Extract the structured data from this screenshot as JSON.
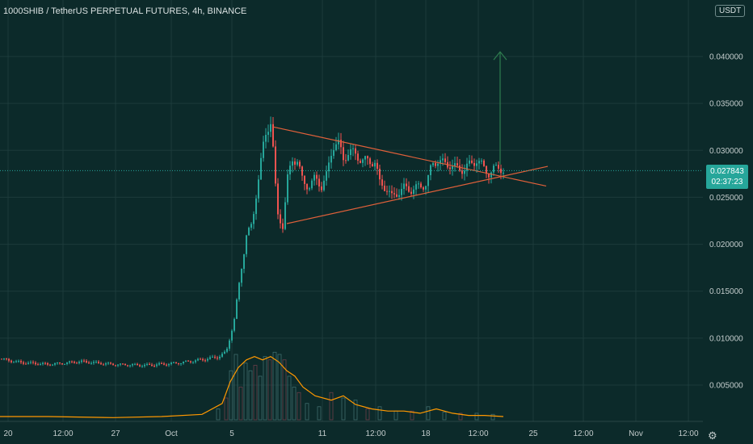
{
  "header": {
    "title": "1000SHIB / TetherUS PERPETUAL FUTURES, 4h, BINANCE",
    "currency": "USDT"
  },
  "price_tag": {
    "price": "0.027843",
    "countdown": "02:37:23"
  },
  "colors": {
    "background": "#0c2a2a",
    "grid": "#1c3b3b",
    "up": "#26a69a",
    "down": "#ef5350",
    "trendline": "#e0603a",
    "arrow": "#2e7d4f",
    "volume_ma": "#ff9800",
    "price_line": "#26a69a"
  },
  "icons": {
    "settings": "gear-icon"
  },
  "chart_data": {
    "type": "candlestick",
    "title": "1000SHIB / TetherUS PERPETUAL FUTURES, 4h, BINANCE",
    "y_axis": {
      "ticks": [
        "0.040000",
        "0.035000",
        "0.030000",
        "0.025000",
        "0.020000",
        "0.015000",
        "0.010000",
        "0.005000"
      ],
      "ylim": [
        0.0,
        0.045
      ]
    },
    "x_axis": {
      "ticks": [
        "20",
        "12:00",
        "27",
        "Oct",
        "5",
        "11",
        "12:00",
        "18",
        "12:00",
        "25",
        "12:00",
        "Nov",
        "12:00"
      ]
    },
    "last_price": 0.027843,
    "price_path": [
      [
        0,
        0.0078
      ],
      [
        25,
        0.0074
      ],
      [
        60,
        0.0072
      ],
      [
        100,
        0.0075
      ],
      [
        140,
        0.0072
      ],
      [
        180,
        0.0071
      ],
      [
        215,
        0.0073
      ],
      [
        250,
        0.0077
      ],
      [
        270,
        0.008
      ],
      [
        280,
        0.0085
      ],
      [
        290,
        0.012
      ],
      [
        298,
        0.017
      ],
      [
        305,
        0.021
      ],
      [
        312,
        0.022
      ],
      [
        318,
        0.026
      ],
      [
        325,
        0.03
      ],
      [
        330,
        0.032
      ],
      [
        336,
        0.0335
      ],
      [
        340,
        0.027
      ],
      [
        344,
        0.023
      ],
      [
        350,
        0.022
      ],
      [
        356,
        0.027
      ],
      [
        362,
        0.029
      ],
      [
        368,
        0.029
      ],
      [
        375,
        0.0265
      ],
      [
        382,
        0.0262
      ],
      [
        390,
        0.027
      ],
      [
        398,
        0.0262
      ],
      [
        405,
        0.0275
      ],
      [
        412,
        0.0305
      ],
      [
        418,
        0.031
      ],
      [
        425,
        0.029
      ],
      [
        432,
        0.03
      ],
      [
        440,
        0.0295
      ],
      [
        448,
        0.029
      ],
      [
        456,
        0.0288
      ],
      [
        464,
        0.0288
      ],
      [
        470,
        0.0265
      ],
      [
        478,
        0.026
      ],
      [
        485,
        0.025
      ],
      [
        492,
        0.0255
      ],
      [
        500,
        0.026
      ],
      [
        508,
        0.0258
      ],
      [
        515,
        0.026
      ],
      [
        522,
        0.0262
      ],
      [
        528,
        0.0265
      ],
      [
        535,
        0.0285
      ],
      [
        542,
        0.029
      ],
      [
        550,
        0.0285
      ],
      [
        558,
        0.0285
      ],
      [
        566,
        0.028
      ],
      [
        574,
        0.028
      ],
      [
        582,
        0.0285
      ],
      [
        590,
        0.029
      ],
      [
        598,
        0.0282
      ],
      [
        606,
        0.0275
      ],
      [
        612,
        0.028
      ],
      [
        618,
        0.0283
      ],
      [
        623,
        0.0278
      ]
    ],
    "volume_ma": [
      [
        0,
        0.0003
      ],
      [
        60,
        0.0003
      ],
      [
        140,
        0.0002
      ],
      [
        200,
        0.0003
      ],
      [
        250,
        0.0005
      ],
      [
        275,
        0.0015
      ],
      [
        285,
        0.0035
      ],
      [
        295,
        0.0048
      ],
      [
        305,
        0.0055
      ],
      [
        315,
        0.0058
      ],
      [
        325,
        0.0055
      ],
      [
        335,
        0.0058
      ],
      [
        345,
        0.0053
      ],
      [
        355,
        0.0045
      ],
      [
        365,
        0.004
      ],
      [
        375,
        0.003
      ],
      [
        390,
        0.0022
      ],
      [
        410,
        0.0018
      ],
      [
        425,
        0.0022
      ],
      [
        440,
        0.0014
      ],
      [
        460,
        0.001
      ],
      [
        480,
        0.0008
      ],
      [
        500,
        0.0008
      ],
      [
        520,
        0.0006
      ],
      [
        540,
        0.001
      ],
      [
        560,
        0.0006
      ],
      [
        580,
        0.0004
      ],
      [
        600,
        0.0004
      ],
      [
        623,
        0.0003
      ]
    ],
    "volume_bars": [
      [
        270,
        0.001
      ],
      [
        280,
        0.002
      ],
      [
        286,
        0.0045
      ],
      [
        292,
        0.006
      ],
      [
        298,
        0.003
      ],
      [
        304,
        0.0052
      ],
      [
        310,
        0.0045
      ],
      [
        316,
        0.005
      ],
      [
        322,
        0.004
      ],
      [
        328,
        0.0058
      ],
      [
        334,
        0.0055
      ],
      [
        340,
        0.0062
      ],
      [
        346,
        0.006
      ],
      [
        352,
        0.0055
      ],
      [
        358,
        0.004
      ],
      [
        364,
        0.003
      ],
      [
        370,
        0.0025
      ],
      [
        380,
        0.0015
      ],
      [
        395,
        0.0012
      ],
      [
        410,
        0.0025
      ],
      [
        425,
        0.002
      ],
      [
        440,
        0.0018
      ],
      [
        455,
        0.001
      ],
      [
        470,
        0.0012
      ],
      [
        490,
        0.0008
      ],
      [
        510,
        0.0008
      ],
      [
        530,
        0.0012
      ],
      [
        550,
        0.0007
      ],
      [
        570,
        0.0006
      ],
      [
        590,
        0.0006
      ],
      [
        610,
        0.0005
      ]
    ],
    "annotations": {
      "triangle_upper": [
        [
          338,
          0.0325
        ],
        [
          676,
          0.0262
        ]
      ],
      "triangle_lower": [
        [
          355,
          0.0222
        ],
        [
          678,
          0.0283
        ]
      ],
      "target_arrow": {
        "x": 619,
        "from": 0.0285,
        "to": 0.0405
      }
    }
  }
}
